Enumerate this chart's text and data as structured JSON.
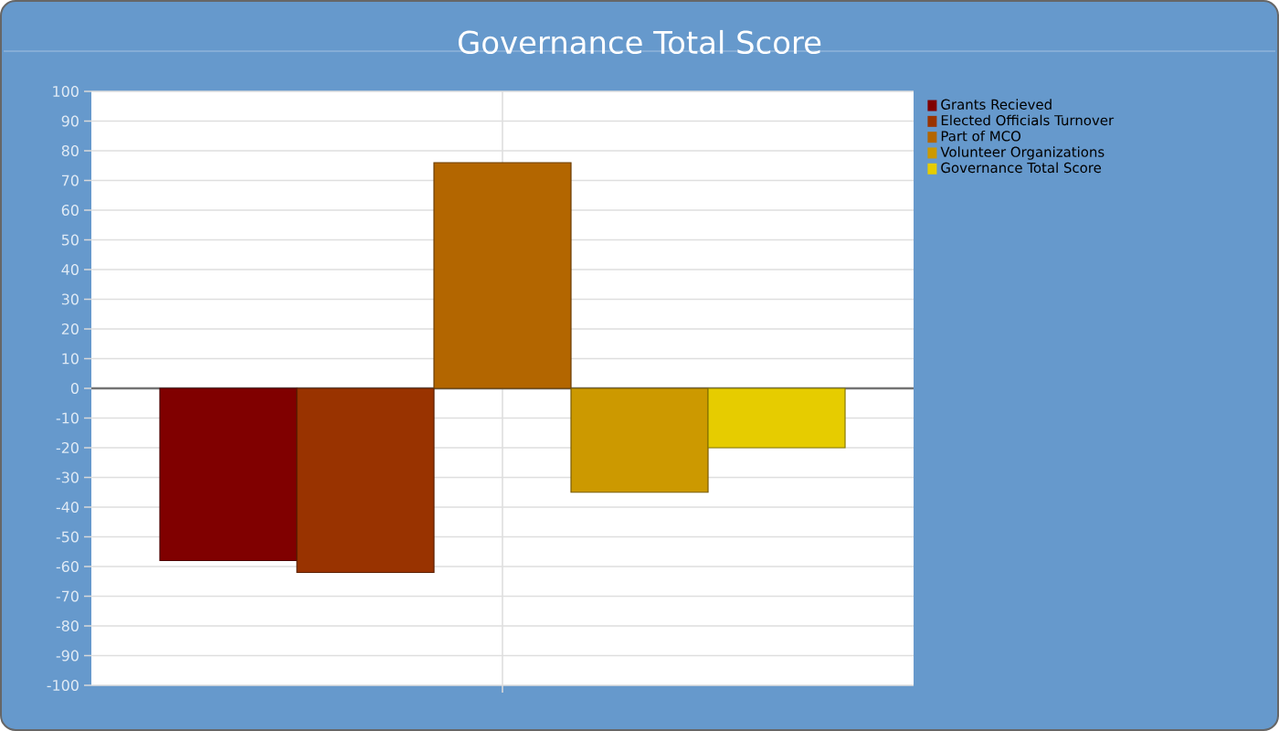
{
  "chart_data": {
    "type": "bar",
    "title": "Governance Total Score",
    "categories": [
      null
    ],
    "series": [
      {
        "name": "Grants Recieved",
        "color": "#800000",
        "values": [
          -58
        ]
      },
      {
        "name": "Elected Officials Turnover",
        "color": "#993300",
        "values": [
          -62
        ]
      },
      {
        "name": "Part of MCO",
        "color": "#b36600",
        "values": [
          76
        ]
      },
      {
        "name": "Volunteer Organizations",
        "color": "#cc9900",
        "values": [
          -35
        ]
      },
      {
        "name": "Governance Total Score",
        "color": "#e6cc00",
        "values": [
          -20
        ]
      }
    ],
    "ylim": [
      -100,
      100
    ],
    "yticks": [
      -100,
      -90,
      -80,
      -70,
      -60,
      -50,
      -40,
      -30,
      -20,
      -10,
      0,
      10,
      20,
      30,
      40,
      50,
      60,
      70,
      80,
      90,
      100
    ],
    "grid": true,
    "legend": "right"
  }
}
